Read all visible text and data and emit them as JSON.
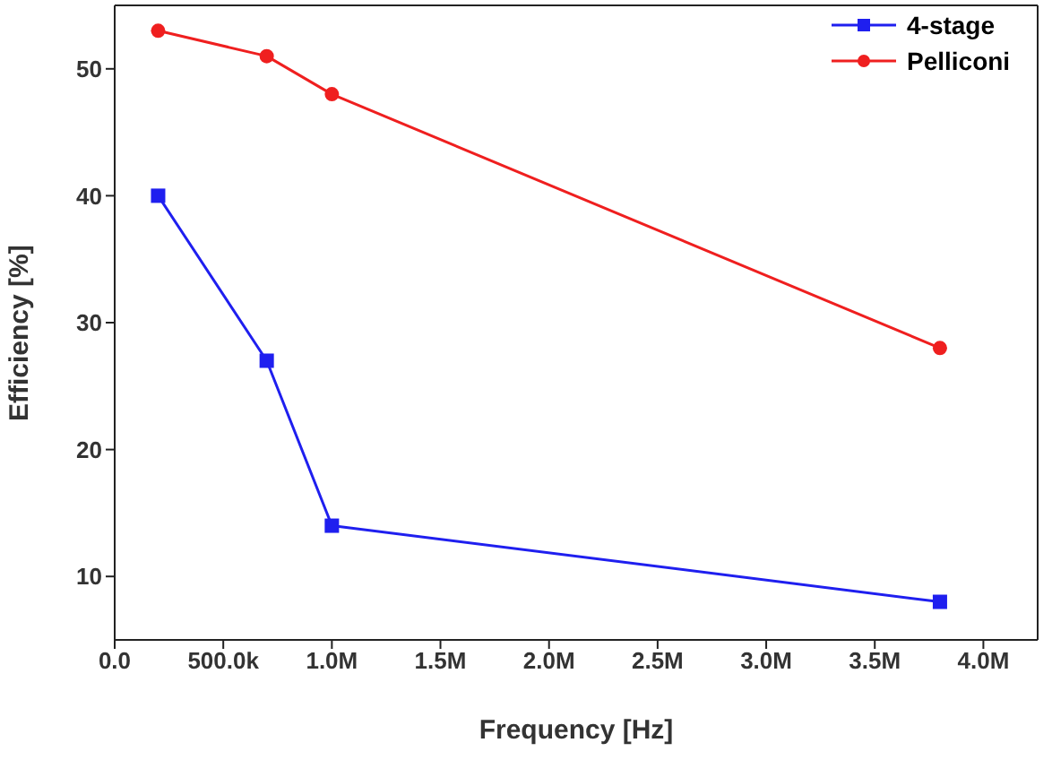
{
  "chart_data": {
    "type": "line",
    "xlabel": "Frequency [Hz]",
    "ylabel": "Efficiency [%]",
    "xlim": [
      0,
      4250000
    ],
    "xticks": [
      {
        "value": 0,
        "label": "0.0"
      },
      {
        "value": 500000,
        "label": "500.0k"
      },
      {
        "value": 1000000,
        "label": "1.0M"
      },
      {
        "value": 1500000,
        "label": "1.5M"
      },
      {
        "value": 2000000,
        "label": "2.0M"
      },
      {
        "value": 2500000,
        "label": "2.5M"
      },
      {
        "value": 3000000,
        "label": "3.0M"
      },
      {
        "value": 3500000,
        "label": "3.5M"
      },
      {
        "value": 4000000,
        "label": "4.0M"
      }
    ],
    "ylim": [
      5,
      55
    ],
    "yticks": [
      10,
      20,
      30,
      40,
      50
    ],
    "x": [
      200000,
      700000,
      1000000,
      3800000
    ],
    "series": [
      {
        "name": "4-stage",
        "color": "#1f1fef",
        "values": [
          40,
          27,
          14,
          8
        ],
        "marker": "square"
      },
      {
        "name": "Pelliconi",
        "color": "#ef1f1f",
        "values": [
          53,
          51,
          48,
          28
        ],
        "marker": "circle"
      }
    ],
    "legend": "top right",
    "grid": false,
    "line_style": "solid"
  }
}
